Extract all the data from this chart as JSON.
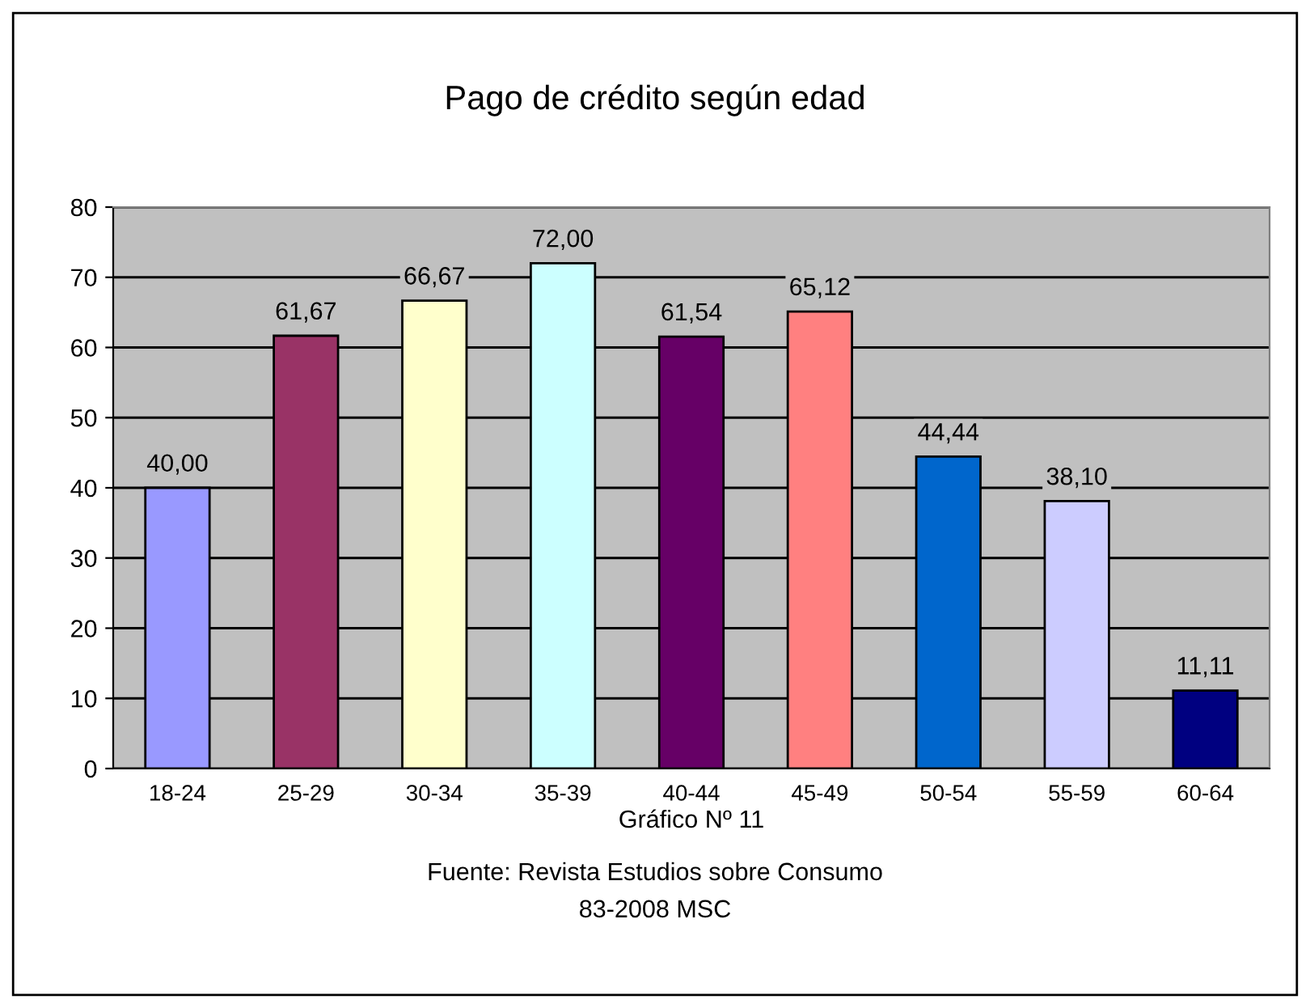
{
  "chart_data": {
    "type": "bar",
    "title": "Pago de crédito según edad",
    "xlabel": "Gráfico Nº 11",
    "annotations": [
      "Fuente: Revista Estudios sobre Consumo",
      "83-2008 MSC"
    ],
    "categories": [
      "18-24",
      "25-29",
      "30-34",
      "35-39",
      "40-44",
      "45-49",
      "50-54",
      "55-59",
      "60-64"
    ],
    "values": [
      40.0,
      61.67,
      66.67,
      72.0,
      61.54,
      65.12,
      44.44,
      38.1,
      11.11
    ],
    "value_labels": [
      "40,00",
      "61,67",
      "66,67",
      "72,00",
      "61,54",
      "65,12",
      "44,44",
      "38,10",
      "11,11"
    ],
    "colors": [
      "#9999ff",
      "#993366",
      "#ffffcc",
      "#ccffff",
      "#660066",
      "#ff8080",
      "#0066cc",
      "#ccccff",
      "#000080"
    ],
    "ylim": [
      0,
      80
    ],
    "yticks": [
      0,
      10,
      20,
      30,
      40,
      50,
      60,
      70,
      80
    ],
    "grid": "y",
    "legend": false
  }
}
